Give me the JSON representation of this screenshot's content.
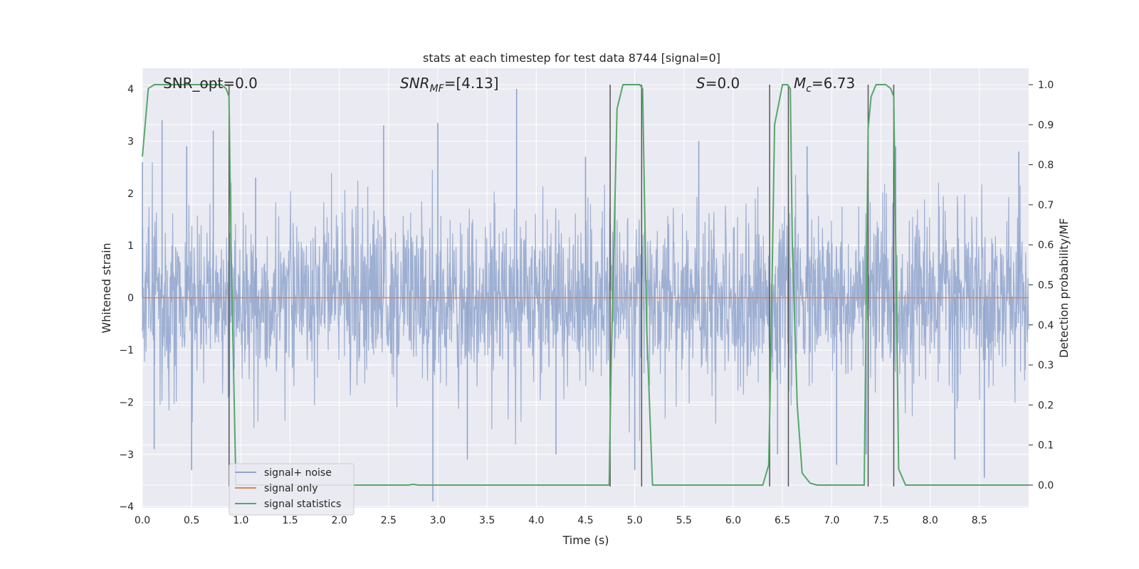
{
  "chart_data": {
    "type": "line",
    "title": "stats at each timestep for test data 8744 [signal=0]",
    "xlabel": "Time (s)",
    "ylabel_left": "Whitened strain",
    "ylabel_right": "Detection probability/MF",
    "xlim": [
      0.0,
      9.0
    ],
    "ylim_left": [
      -4.0,
      4.3
    ],
    "ylim_right": [
      -0.045,
      1.0
    ],
    "xticks": [
      "0.0",
      "0.5",
      "1.0",
      "1.5",
      "2.0",
      "2.5",
      "3.0",
      "3.5",
      "4.0",
      "4.5",
      "5.0",
      "5.5",
      "6.0",
      "6.5",
      "7.0",
      "7.5",
      "8.0",
      "8.5"
    ],
    "xtick_values": [
      0.0,
      0.5,
      1.0,
      1.5,
      2.0,
      2.5,
      3.0,
      3.5,
      4.0,
      4.5,
      5.0,
      5.5,
      6.0,
      6.5,
      7.0,
      7.5,
      8.0,
      8.5
    ],
    "yticks_left": [
      "−4",
      "−3",
      "−2",
      "−1",
      "0",
      "1",
      "2",
      "3",
      "4"
    ],
    "ytick_values_left": [
      -4,
      -3,
      -2,
      -1,
      0,
      1,
      2,
      3,
      4
    ],
    "yticks_right": [
      "0.0",
      "0.1",
      "0.2",
      "0.3",
      "0.4",
      "0.5",
      "0.6",
      "0.7",
      "0.8",
      "0.9",
      "1.0"
    ],
    "ytick_values_right": [
      0.0,
      0.1,
      0.2,
      0.3,
      0.4,
      0.5,
      0.6,
      0.7,
      0.8,
      0.9,
      1.0
    ],
    "grid": true,
    "legend_position": "lower-left",
    "annotations": {
      "snr_opt": "SNR_opt=0.0",
      "snr_mf_main": "SNR",
      "snr_mf_sub": "MF",
      "snr_mf_value": "=[4.13]",
      "s_main": "S",
      "s_value": "=0.0",
      "mc_main": "M",
      "mc_sub": "c",
      "mc_value": "=6.73"
    },
    "vertical_lines_time": [
      0.88,
      4.75,
      5.07,
      6.37,
      6.56,
      7.37,
      7.63
    ],
    "series": [
      {
        "name": "signal+ noise",
        "color": "#8fa5cd",
        "description_axis": "left",
        "kind": "noise",
        "envelope_std": 0.78,
        "spike_points": [
          {
            "x": 0.0,
            "y": 2.6
          },
          {
            "x": 0.2,
            "y": 3.4
          },
          {
            "x": 0.45,
            "y": 2.9
          },
          {
            "x": 0.72,
            "y": 3.2
          },
          {
            "x": 1.15,
            "y": 2.3
          },
          {
            "x": 2.45,
            "y": 3.3
          },
          {
            "x": 3.0,
            "y": 3.35
          },
          {
            "x": 3.8,
            "y": 4.0
          },
          {
            "x": 4.5,
            "y": 2.7
          },
          {
            "x": 5.65,
            "y": 3.0
          },
          {
            "x": 6.75,
            "y": 2.9
          },
          {
            "x": 7.65,
            "y": 2.9
          },
          {
            "x": 8.9,
            "y": 2.8
          },
          {
            "x": 0.5,
            "y": -3.3
          },
          {
            "x": 0.12,
            "y": -2.9
          },
          {
            "x": 2.95,
            "y": -3.9
          },
          {
            "x": 3.3,
            "y": -3.1
          },
          {
            "x": 4.2,
            "y": -3.0
          },
          {
            "x": 5.0,
            "y": -3.3
          },
          {
            "x": 6.45,
            "y": -3.0
          },
          {
            "x": 7.35,
            "y": -3.0
          },
          {
            "x": 7.05,
            "y": -3.2
          },
          {
            "x": 8.55,
            "y": -3.45
          },
          {
            "x": 8.25,
            "y": -3.1
          }
        ]
      },
      {
        "name": "signal only",
        "color": "#dd8452",
        "axis": "left",
        "x": [
          0.0,
          9.0
        ],
        "y": [
          0.0,
          0.0
        ]
      },
      {
        "name": "signal statistics",
        "color": "#55a868",
        "axis": "right",
        "x": [
          0.0,
          0.06,
          0.12,
          0.2,
          0.3,
          0.5,
          0.7,
          0.8,
          0.85,
          0.88,
          0.9,
          0.95,
          1.0,
          1.5,
          2.0,
          2.5,
          2.7,
          2.75,
          2.8,
          3.0,
          3.5,
          4.0,
          4.5,
          4.74,
          4.76,
          4.82,
          4.88,
          4.95,
          5.0,
          5.05,
          5.08,
          5.12,
          5.18,
          5.5,
          6.0,
          6.3,
          6.36,
          6.38,
          6.42,
          6.5,
          6.55,
          6.58,
          6.6,
          6.65,
          6.7,
          6.78,
          6.85,
          7.0,
          7.33,
          7.37,
          7.4,
          7.45,
          7.5,
          7.55,
          7.6,
          7.63,
          7.68,
          7.75,
          8.0,
          8.5,
          9.0
        ],
        "y": [
          0.82,
          0.99,
          1.0,
          1.0,
          1.0,
          1.0,
          1.0,
          1.0,
          0.99,
          0.97,
          0.6,
          0.0,
          0.0,
          0.0,
          0.0,
          0.0,
          0.0,
          0.002,
          0.0,
          0.0,
          0.0,
          0.0,
          0.0,
          0.0,
          0.3,
          0.94,
          1.0,
          1.0,
          1.0,
          1.0,
          0.99,
          0.4,
          0.0,
          0.0,
          0.0,
          0.0,
          0.05,
          0.3,
          0.9,
          1.0,
          1.0,
          0.99,
          0.6,
          0.2,
          0.03,
          0.005,
          0.0,
          0.0,
          0.0,
          0.89,
          0.97,
          1.0,
          1.0,
          1.0,
          0.99,
          0.97,
          0.04,
          0.0,
          0.0,
          0.0,
          0.0
        ]
      }
    ]
  }
}
